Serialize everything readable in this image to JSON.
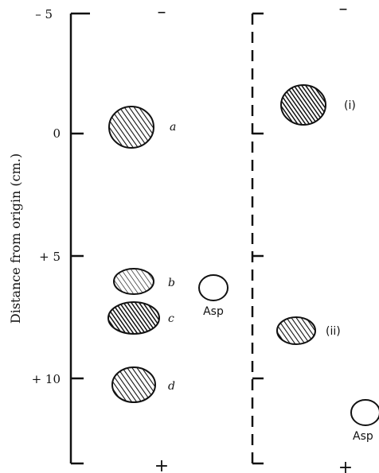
{
  "figure": {
    "y_axis_label": "Distance from origin (cm.)",
    "y_ticks": [
      "– 5",
      "0",
      "+ 5",
      "+ 10"
    ],
    "poles": {
      "top": "–",
      "bottom": "+"
    }
  },
  "left_strip": {
    "spots": [
      {
        "label": "a",
        "pattern": "hatched"
      },
      {
        "label": "b",
        "pattern": "light-hatched"
      },
      {
        "label": "c",
        "pattern": "dark-hatched"
      },
      {
        "label": "d",
        "pattern": "hatched"
      }
    ],
    "reference": {
      "label": "Asp"
    }
  },
  "right_strip": {
    "spots": [
      {
        "label": "(i)",
        "pattern": "dark-hatched"
      },
      {
        "label": "(ii)",
        "pattern": "hatched"
      }
    ],
    "reference": {
      "label": "Asp"
    }
  }
}
